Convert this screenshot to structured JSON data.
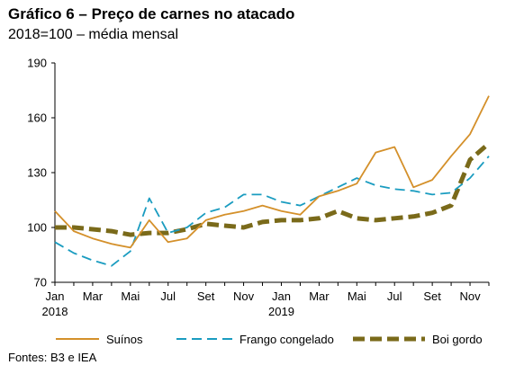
{
  "header": {
    "title": "Gráfico 6 – Preço de carnes no atacado",
    "subtitle": "2018=100 – média mensal"
  },
  "source": "Fontes: B3 e IEA",
  "chart_data": {
    "type": "line",
    "title": "Gráfico 6 – Preço de carnes no atacado",
    "subtitle": "2018=100 – média mensal",
    "ylim": [
      70,
      190
    ],
    "yticks": [
      70,
      100,
      130,
      160,
      190
    ],
    "x": [
      "Jan 2018",
      "Fev 2018",
      "Mar 2018",
      "Abr 2018",
      "Mai 2018",
      "Jun 2018",
      "Jul 2018",
      "Ago 2018",
      "Set 2018",
      "Out 2018",
      "Nov 2018",
      "Dez 2018",
      "Jan 2019",
      "Fev 2019",
      "Mar 2019",
      "Abr 2019",
      "Mai 2019",
      "Jun 2019",
      "Jul 2019",
      "Ago 2019",
      "Set 2019",
      "Out 2019",
      "Nov 2019",
      "Dez 2019"
    ],
    "xtick_labels": [
      {
        "index": 0,
        "line1": "Jan",
        "line2": "2018"
      },
      {
        "index": 2,
        "line1": "Mar",
        "line2": ""
      },
      {
        "index": 4,
        "line1": "Mai",
        "line2": ""
      },
      {
        "index": 6,
        "line1": "Jul",
        "line2": ""
      },
      {
        "index": 8,
        "line1": "Set",
        "line2": ""
      },
      {
        "index": 10,
        "line1": "Nov",
        "line2": ""
      },
      {
        "index": 12,
        "line1": "Jan",
        "line2": "2019"
      },
      {
        "index": 14,
        "line1": "Mar",
        "line2": ""
      },
      {
        "index": 16,
        "line1": "Mai",
        "line2": ""
      },
      {
        "index": 18,
        "line1": "Jul",
        "line2": ""
      },
      {
        "index": 20,
        "line1": "Set",
        "line2": ""
      },
      {
        "index": 22,
        "line1": "Nov",
        "line2": ""
      }
    ],
    "series": [
      {
        "name": "Suínos",
        "color": "#d4902a",
        "style": "solid",
        "values": [
          109,
          98,
          94,
          91,
          89,
          104,
          92,
          94,
          104,
          107,
          109,
          112,
          109,
          107,
          117,
          120,
          124,
          141,
          144,
          122,
          126,
          139,
          151,
          172
        ]
      },
      {
        "name": "Frango congelado",
        "color": "#1a9cc0",
        "style": "dashed",
        "values": [
          92,
          86,
          82,
          79,
          87,
          116,
          97,
          100,
          108,
          111,
          118,
          118,
          114,
          112,
          117,
          122,
          127,
          123,
          121,
          120,
          118,
          119,
          127,
          139
        ]
      },
      {
        "name": "Boi gordo",
        "color": "#7a6a1a",
        "style": "thick-dashed",
        "values": [
          100,
          100,
          99,
          98,
          96,
          97,
          97,
          99,
          102,
          101,
          100,
          103,
          104,
          104,
          105,
          109,
          105,
          104,
          105,
          106,
          108,
          112,
          137,
          146
        ]
      }
    ],
    "legend": "bottom",
    "grid": false
  }
}
